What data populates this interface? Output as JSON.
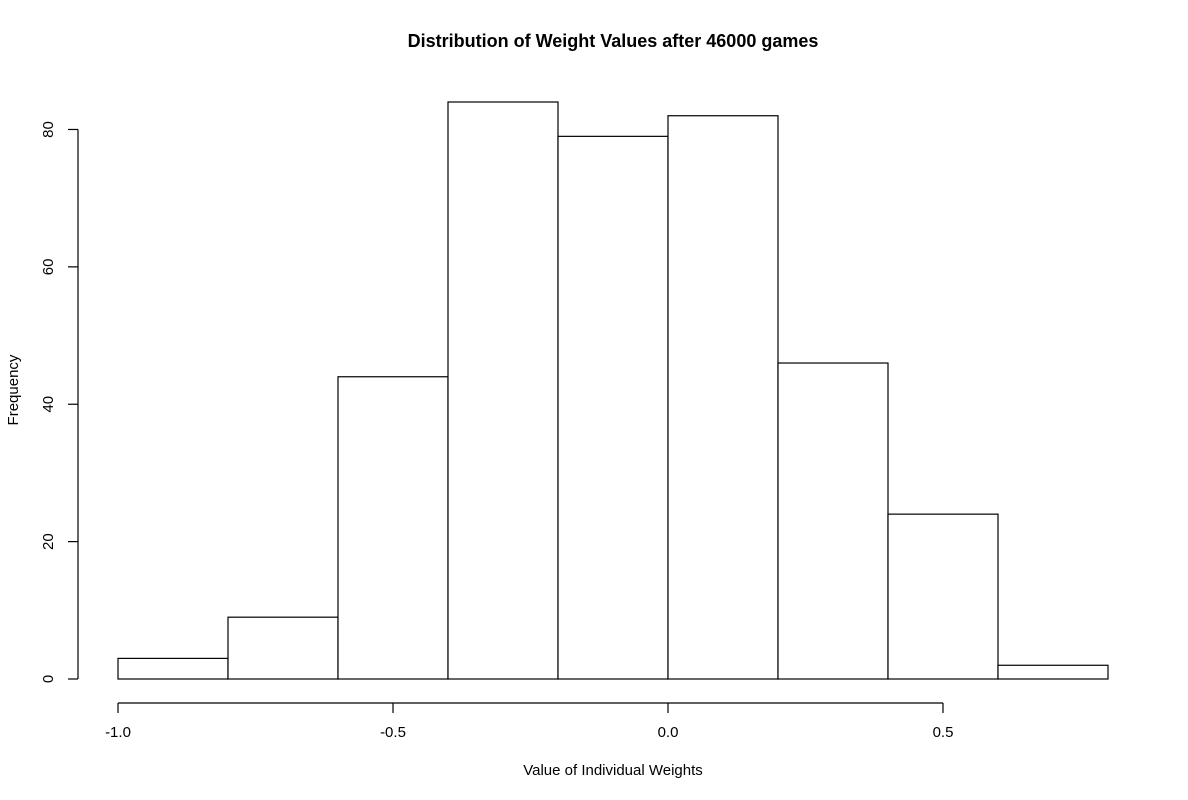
{
  "chart_data": {
    "type": "bar",
    "subtype": "histogram",
    "title": "Distribution of Weight Values after 46000 games",
    "xlabel": "Value of Individual Weights",
    "ylabel": "Frequency",
    "bins": [
      {
        "start": -1.0,
        "end": -0.8,
        "count": 3
      },
      {
        "start": -0.8,
        "end": -0.6,
        "count": 9
      },
      {
        "start": -0.6,
        "end": -0.4,
        "count": 44
      },
      {
        "start": -0.4,
        "end": -0.2,
        "count": 84
      },
      {
        "start": -0.2,
        "end": 0.0,
        "count": 79
      },
      {
        "start": 0.0,
        "end": 0.2,
        "count": 82
      },
      {
        "start": 0.2,
        "end": 0.4,
        "count": 46
      },
      {
        "start": 0.4,
        "end": 0.6,
        "count": 24
      },
      {
        "start": 0.6,
        "end": 0.8,
        "count": 2
      }
    ],
    "xlim": [
      -1.0,
      0.8
    ],
    "ylim": [
      0,
      84
    ],
    "xticks": [
      -1.0,
      -0.5,
      0.0,
      0.5
    ],
    "xtick_labels": [
      "-1.0",
      "-0.5",
      "0.0",
      "0.5"
    ],
    "yticks": [
      0,
      20,
      40,
      60,
      80
    ],
    "ytick_labels": [
      "0",
      "20",
      "40",
      "60",
      "80"
    ],
    "grid": false,
    "legend": "none",
    "bar_fill": "#ffffff",
    "bar_stroke": "#000000"
  }
}
